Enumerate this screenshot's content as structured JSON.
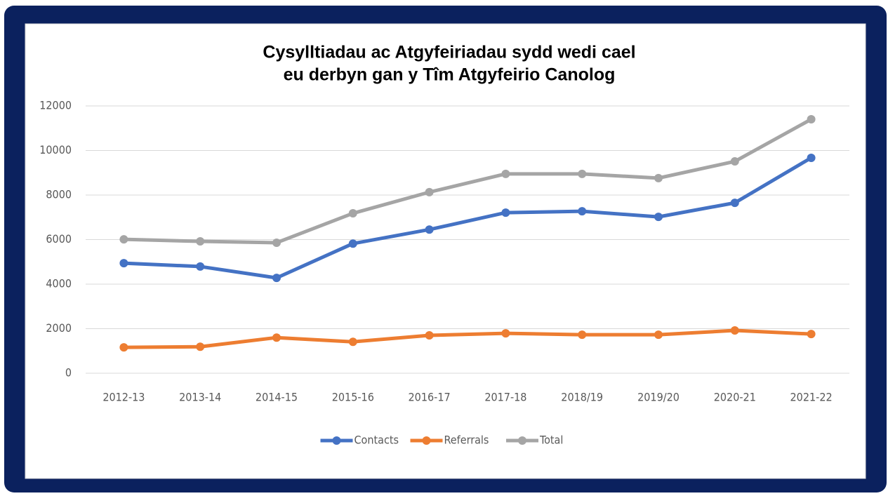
{
  "chart_data": {
    "type": "line",
    "title": "Cysylltiadau ac Atgyfeiriadau sydd wedi cael",
    "subtitle": "eu derbyn gan y Tîm Atgyfeirio Canolog",
    "categories": [
      "2012-13",
      "2013-14",
      "2014-15",
      "2015-16",
      "2016-17",
      "2017-18",
      "2018/19",
      "2019/20",
      "2020-21",
      "2021-22"
    ],
    "series": [
      {
        "name": "Contacts",
        "color": "#4472c4",
        "values": [
          4940,
          4790,
          4280,
          5820,
          6450,
          7210,
          7270,
          7020,
          7650,
          9670
        ]
      },
      {
        "name": "Referrals",
        "color": "#ed7d31",
        "values": [
          1160,
          1190,
          1600,
          1410,
          1700,
          1790,
          1730,
          1730,
          1920,
          1760
        ]
      },
      {
        "name": "Total",
        "color": "#a5a5a5",
        "values": [
          6010,
          5920,
          5860,
          7180,
          8130,
          8950,
          8950,
          8760,
          9510,
          11400
        ]
      }
    ],
    "ylim": [
      0,
      12000
    ],
    "yticks": [
      0,
      2000,
      4000,
      6000,
      8000,
      10000,
      12000
    ],
    "grid": true,
    "legend": "bottom"
  }
}
